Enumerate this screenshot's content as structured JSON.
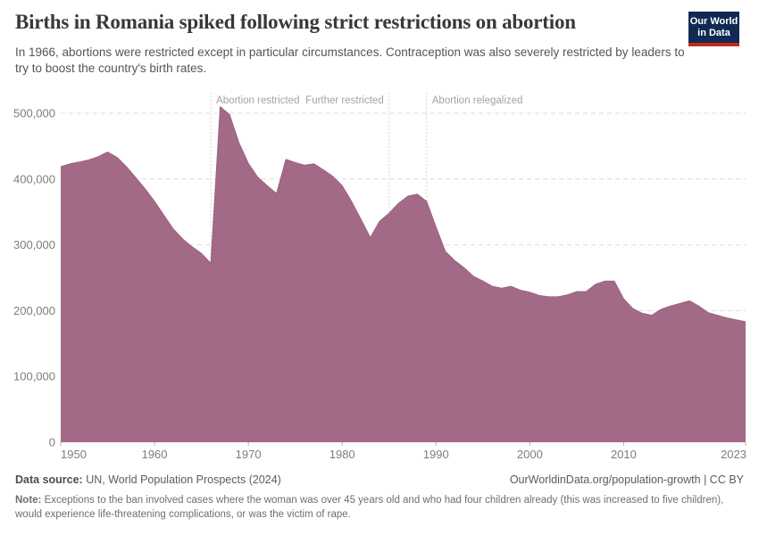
{
  "header": {
    "title": "Births in Romania spiked following strict restrictions on abortion",
    "subtitle": "In 1966, abortions were restricted except in particular circumstances. Contraception was also severely restricted by leaders to try to boost the country's birth rates.",
    "logo_line1": "Our World",
    "logo_line2": "in Data",
    "logo_bg_color": "#102a54",
    "logo_stripe_color": "#c32a1c"
  },
  "chart_data": {
    "type": "area",
    "title": "Births in Romania spiked following strict restrictions on abortion",
    "series_name": "Births in Romania",
    "x": [
      1950,
      1951,
      1952,
      1953,
      1954,
      1955,
      1956,
      1957,
      1958,
      1959,
      1960,
      1961,
      1962,
      1963,
      1964,
      1965,
      1966,
      1967,
      1968,
      1969,
      1970,
      1971,
      1972,
      1973,
      1974,
      1975,
      1976,
      1977,
      1978,
      1979,
      1980,
      1981,
      1982,
      1983,
      1984,
      1985,
      1986,
      1987,
      1988,
      1989,
      1990,
      1991,
      1992,
      1993,
      1994,
      1995,
      1996,
      1997,
      1998,
      1999,
      2000,
      2001,
      2002,
      2003,
      2004,
      2005,
      2006,
      2007,
      2008,
      2009,
      2010,
      2011,
      2012,
      2013,
      2014,
      2015,
      2016,
      2017,
      2018,
      2019,
      2020,
      2021,
      2022,
      2023
    ],
    "values": [
      419000,
      423000,
      426000,
      429000,
      434000,
      441000,
      433000,
      419000,
      402000,
      385000,
      366000,
      345000,
      324000,
      309000,
      297000,
      287000,
      272000,
      510000,
      498000,
      455000,
      424000,
      403000,
      390000,
      378000,
      430000,
      425000,
      421000,
      423000,
      414000,
      404000,
      390000,
      366000,
      339000,
      311000,
      336000,
      348000,
      363000,
      374000,
      377000,
      366000,
      327000,
      290000,
      276000,
      265000,
      252000,
      245000,
      237000,
      234000,
      237000,
      231000,
      228000,
      223000,
      221000,
      221000,
      224000,
      229000,
      229000,
      240000,
      245000,
      245000,
      218000,
      203000,
      196000,
      193000,
      202000,
      207000,
      211000,
      215000,
      207000,
      197000,
      193000,
      189000,
      186000,
      183000
    ],
    "xlabel": "",
    "ylabel": "",
    "ylim": [
      0,
      500000
    ],
    "yticks": [
      0,
      100000,
      200000,
      300000,
      400000,
      500000
    ],
    "ytick_labels": [
      "0",
      "100,000",
      "200,000",
      "300,000",
      "400,000",
      "500,000"
    ],
    "xticks": [
      1950,
      1960,
      1970,
      1980,
      1990,
      2000,
      2010,
      2023
    ],
    "grid": "horizontal dashed",
    "legend_position": "none",
    "annotations": [
      {
        "year": 1966,
        "label": "Abortion restricted",
        "label_side": "right"
      },
      {
        "year": 1985,
        "label": "Further restricted",
        "label_side": "left"
      },
      {
        "year": 1989,
        "label": "Abortion relegalized",
        "label_side": "right"
      }
    ],
    "colors": {
      "area_fill": "#a26a87",
      "area_edge": "#9b6380",
      "grid_line": "#dcdcdc",
      "event_line": "#c9c9c9",
      "tick_text": "#7d7d7d",
      "annotation_text": "#a3a3a3",
      "tick_mark": "#b0b0b0"
    },
    "layout": {
      "x0": 68,
      "x1": 835,
      "y_bottom": 496,
      "y_top": 127,
      "x_start": 1950,
      "x_end": 2023,
      "tick_label_y": 514,
      "annotation_label_y": 116,
      "event_line_top": 104
    }
  },
  "footer": {
    "source_label": "Data source:",
    "source_text": " UN, World Population Prospects (2024)",
    "attribution": "OurWorldinData.org/population-growth | CC BY",
    "note_label": "Note:",
    "note_text": " Exceptions to the ban involved cases where the woman was over 45 years old and who had four children already (this was increased to five children), would experience life-threatening complications, or was the victim of rape."
  }
}
